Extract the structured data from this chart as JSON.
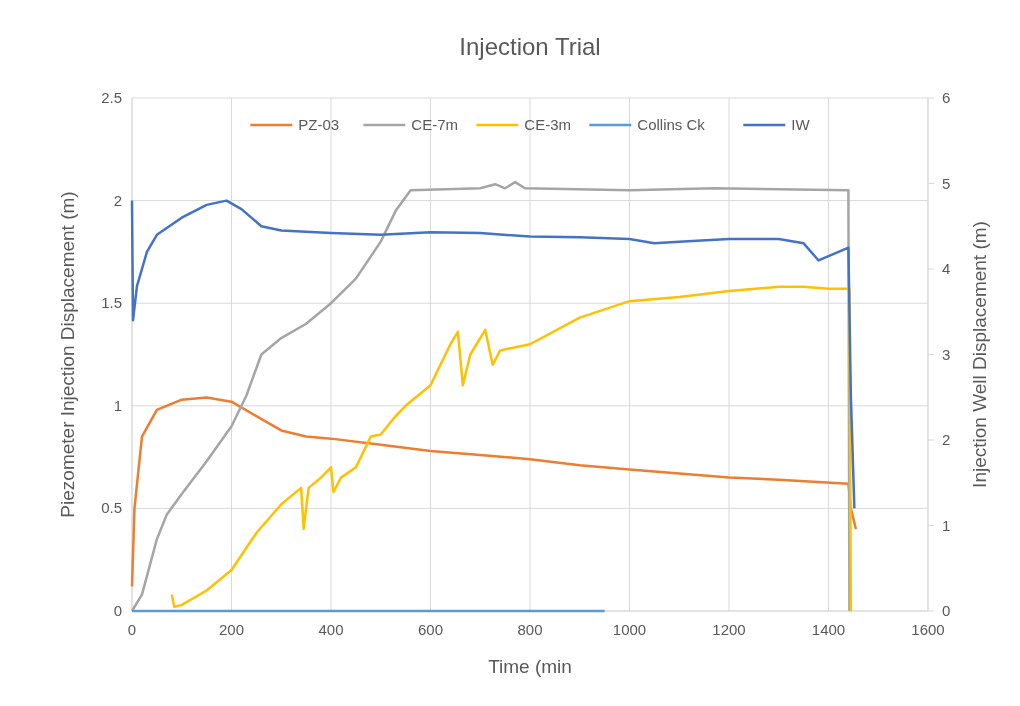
{
  "chart_data": {
    "type": "line",
    "title": "Injection Trial",
    "xlabel": "Time (min",
    "ylabel": "Piezometer Injection Displacement (m)",
    "y2label": "Injection Well Displacement (m)",
    "xlim": [
      0,
      1600
    ],
    "xticks": [
      0,
      200,
      400,
      600,
      800,
      1000,
      1200,
      1400,
      1600
    ],
    "ylim": [
      0,
      2.5
    ],
    "yticks": [
      0,
      0.5,
      1,
      1.5,
      2,
      2.5
    ],
    "y2lim": [
      0,
      6
    ],
    "y2ticks": [
      0,
      1,
      2,
      3,
      4,
      5,
      6
    ],
    "grid": true,
    "legend": "top",
    "marker": "none",
    "line_style": "solid",
    "series": [
      {
        "name": "PZ-03",
        "color": "#ed7d31",
        "x": [
          0,
          5,
          20,
          50,
          100,
          150,
          200,
          250,
          300,
          350,
          400,
          500,
          600,
          700,
          800,
          900,
          1000,
          1100,
          1200,
          1300,
          1440,
          1445,
          1455
        ],
        "values": [
          0.12,
          0.5,
          0.85,
          0.98,
          1.03,
          1.04,
          1.02,
          0.95,
          0.88,
          0.85,
          0.84,
          0.81,
          0.78,
          0.76,
          0.74,
          0.71,
          0.69,
          0.67,
          0.65,
          0.64,
          0.62,
          0.5,
          0.4
        ]
      },
      {
        "name": "CE-7m",
        "color": "#a5a5a5",
        "x": [
          0,
          20,
          50,
          70,
          100,
          150,
          200,
          230,
          260,
          300,
          350,
          400,
          450,
          500,
          530,
          560,
          700,
          730,
          750,
          770,
          790,
          1000,
          1170,
          1440,
          1442
        ],
        "values": [
          0,
          0.08,
          0.35,
          0.47,
          0.57,
          0.73,
          0.9,
          1.05,
          1.25,
          1.33,
          1.4,
          1.5,
          1.62,
          1.8,
          1.95,
          2.05,
          2.06,
          2.08,
          2.06,
          2.09,
          2.06,
          2.05,
          2.06,
          2.05,
          0
        ]
      },
      {
        "name": "CE-3m",
        "color": "#ffc000",
        "x": [
          80,
          85,
          100,
          150,
          200,
          250,
          300,
          340,
          345,
          355,
          380,
          400,
          405,
          420,
          450,
          480,
          500,
          530,
          550,
          600,
          640,
          655,
          665,
          680,
          710,
          725,
          740,
          800,
          900,
          1000,
          1100,
          1200,
          1300,
          1350,
          1400,
          1442,
          1445
        ],
        "values": [
          0.08,
          0.02,
          0.03,
          0.1,
          0.2,
          0.38,
          0.52,
          0.6,
          0.4,
          0.6,
          0.65,
          0.7,
          0.58,
          0.65,
          0.7,
          0.85,
          0.86,
          0.95,
          1.0,
          1.1,
          1.3,
          1.36,
          1.1,
          1.25,
          1.37,
          1.2,
          1.27,
          1.3,
          1.43,
          1.51,
          1.53,
          1.56,
          1.58,
          1.58,
          1.57,
          1.57,
          0
        ]
      },
      {
        "name": "Collins Ck",
        "color": "#5b9bd5",
        "x": [
          0,
          950
        ],
        "values": [
          0,
          0
        ]
      },
      {
        "name": "IW",
        "color": "#4472c4",
        "axis": "y2",
        "x": [
          0,
          2,
          10,
          30,
          50,
          100,
          150,
          190,
          220,
          260,
          300,
          400,
          500,
          600,
          700,
          800,
          900,
          1000,
          1050,
          1100,
          1200,
          1300,
          1350,
          1380,
          1400,
          1440,
          1445,
          1452
        ],
        "values": [
          4.8,
          3.4,
          3.8,
          4.2,
          4.4,
          4.6,
          4.75,
          4.8,
          4.7,
          4.5,
          4.45,
          4.42,
          4.4,
          4.43,
          4.42,
          4.38,
          4.37,
          4.35,
          4.3,
          4.32,
          4.35,
          4.35,
          4.3,
          4.1,
          4.15,
          4.25,
          2.5,
          1.2
        ]
      }
    ]
  }
}
